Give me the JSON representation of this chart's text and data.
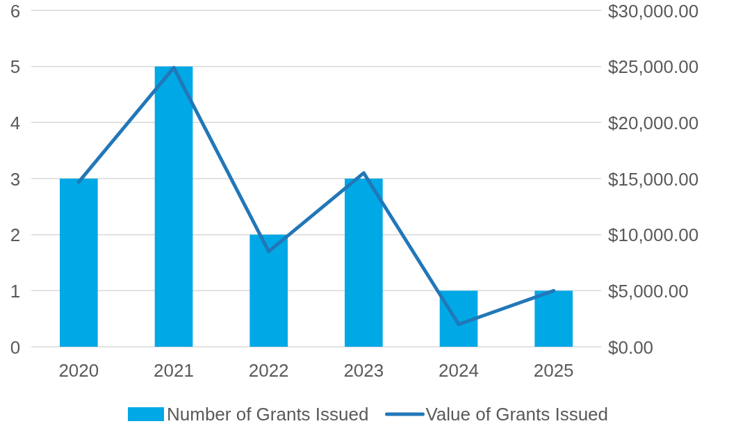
{
  "chart_data": {
    "type": "bar",
    "categories": [
      "2020",
      "2021",
      "2022",
      "2023",
      "2024",
      "2025"
    ],
    "series": [
      {
        "name": "Number of Grants Issued",
        "color": "#00a8e6",
        "values": [
          3,
          5,
          2,
          3,
          1,
          1
        ]
      },
      {
        "name": "Value of Grants Issued",
        "type": "line",
        "axis": "y2",
        "color": "#2277b8",
        "values": [
          14700,
          24900,
          8500,
          15500,
          2000,
          5000
        ]
      }
    ],
    "ylim": [
      0,
      6
    ],
    "yticks": [
      0,
      1,
      2,
      3,
      4,
      5,
      6
    ],
    "y2lim": [
      0,
      30000
    ],
    "y2ticks": [
      {
        "value": 0,
        "label": "$0.00"
      },
      {
        "value": 5000,
        "label": "$5,000.00"
      },
      {
        "value": 10000,
        "label": "$10,000.00"
      },
      {
        "value": 15000,
        "label": "$15,000.00"
      },
      {
        "value": 20000,
        "label": "$20,000.00"
      },
      {
        "value": 25000,
        "label": "$25,000.00"
      },
      {
        "value": 30000,
        "label": "$30,000.00"
      }
    ],
    "grid": "y",
    "legend": "bottom",
    "marker": "none",
    "line_style": "solid"
  }
}
